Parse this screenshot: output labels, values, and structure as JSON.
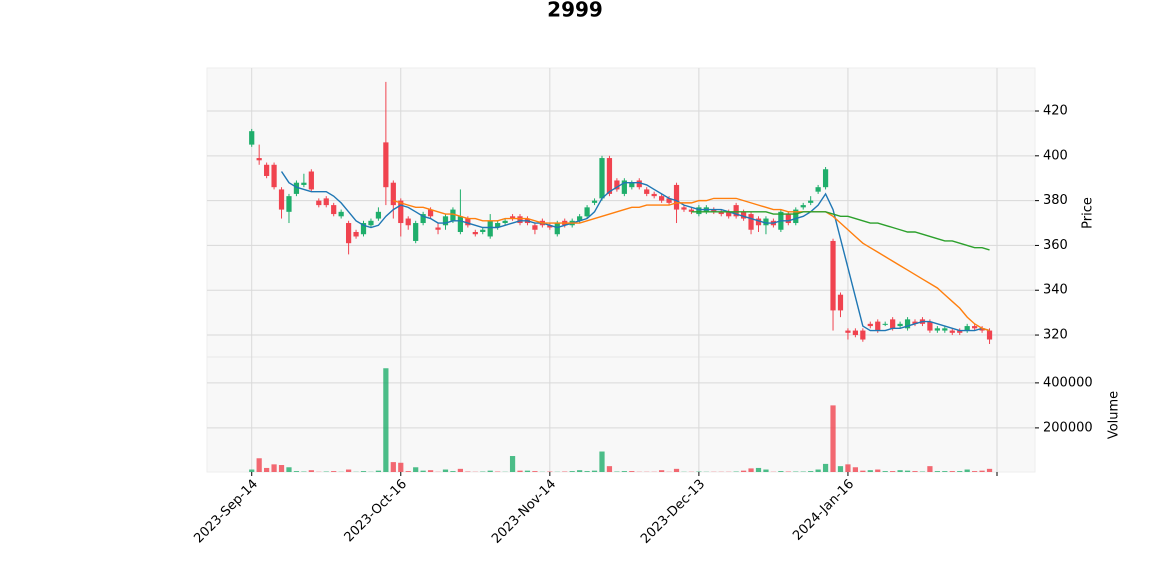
{
  "chart_data": {
    "type": "candlestick",
    "title": "2999",
    "categories": [
      "2023-Sep-14",
      null,
      null,
      null,
      null,
      null,
      null,
      null,
      null,
      null,
      null,
      null,
      null,
      null,
      null,
      null,
      null,
      null,
      null,
      null,
      "2023-Oct-16",
      null,
      null,
      null,
      null,
      null,
      null,
      null,
      null,
      null,
      null,
      null,
      null,
      null,
      null,
      null,
      null,
      null,
      null,
      null,
      "2023-Nov-14",
      null,
      null,
      null,
      null,
      null,
      null,
      null,
      null,
      null,
      null,
      null,
      null,
      null,
      null,
      null,
      null,
      null,
      null,
      null,
      "2023-Dec-13",
      null,
      null,
      null,
      null,
      null,
      null,
      null,
      null,
      null,
      null,
      null,
      null,
      null,
      null,
      null,
      null,
      null,
      null,
      null,
      "2024-Jan-16",
      null,
      null,
      null,
      null,
      null,
      null,
      null,
      null,
      null,
      null,
      null,
      null,
      null,
      null,
      null,
      null,
      null,
      null,
      null
    ],
    "xlim": [
      -6,
      105.1
    ],
    "xticks": [
      0,
      20,
      40,
      60,
      80,
      100
    ],
    "open": [
      405,
      399,
      396,
      396,
      385,
      375,
      383,
      387,
      393,
      380,
      381,
      378,
      373,
      370,
      366,
      365,
      369,
      372,
      406,
      388,
      380,
      372,
      362,
      370,
      376,
      368,
      369,
      371,
      366,
      372,
      366,
      366,
      364,
      368,
      370,
      373,
      373,
      372,
      369,
      371,
      369,
      365,
      371,
      369,
      371,
      373,
      379,
      381,
      399,
      389,
      383,
      386,
      389,
      385,
      383,
      382,
      381,
      387,
      377,
      376,
      374,
      375,
      376,
      375,
      375,
      378,
      375,
      374,
      372,
      369,
      371,
      367,
      374,
      370,
      377,
      379,
      384,
      386,
      362,
      338,
      322,
      322,
      322,
      325,
      326,
      325,
      327,
      324,
      323,
      326,
      327,
      326,
      322,
      322,
      322,
      322,
      322,
      324,
      323,
      322
    ],
    "high": [
      412,
      405,
      397,
      397,
      386,
      383,
      389,
      392,
      394,
      381,
      382,
      379,
      376,
      371,
      367,
      371,
      372,
      377,
      433,
      389,
      381,
      373,
      371,
      375,
      377,
      370,
      374,
      377,
      385,
      373,
      367,
      368,
      374,
      371,
      372,
      374,
      374,
      373,
      370,
      372,
      370,
      371,
      372,
      372,
      374,
      378,
      381,
      400,
      400,
      390,
      390,
      389,
      390,
      386,
      384,
      383,
      382,
      388,
      378,
      377,
      378,
      378,
      377,
      376,
      376,
      379,
      376,
      375,
      373,
      373,
      372,
      376,
      375,
      377,
      379,
      382,
      387,
      395,
      363,
      339,
      323,
      323,
      323,
      326,
      327,
      326,
      328,
      326,
      328,
      327,
      328,
      327,
      324,
      324,
      323,
      323,
      325,
      325,
      324,
      323
    ],
    "low": [
      404,
      396,
      390,
      385,
      372,
      370,
      382,
      386,
      384,
      377,
      377,
      373,
      372,
      356,
      363,
      364,
      368,
      371,
      378,
      372,
      364,
      367,
      361,
      369,
      372,
      365,
      367,
      370,
      365,
      368,
      364,
      365,
      363,
      367,
      369,
      371,
      369,
      369,
      365,
      368,
      367,
      364,
      368,
      368,
      370,
      372,
      378,
      380,
      382,
      384,
      382,
      385,
      385,
      382,
      381,
      379,
      378,
      370,
      375,
      374,
      373,
      374,
      374,
      373,
      372,
      372,
      371,
      365,
      366,
      365,
      368,
      366,
      369,
      369,
      376,
      378,
      383,
      385,
      322,
      328,
      318,
      319,
      317,
      323,
      321,
      324,
      322,
      323,
      322,
      324,
      324,
      321,
      321,
      321,
      320,
      320,
      321,
      322,
      321,
      316
    ],
    "close": [
      411,
      398,
      391,
      386,
      376,
      382,
      388,
      388,
      385,
      378,
      378,
      374,
      375,
      361,
      364,
      370,
      371,
      375,
      386,
      378,
      370,
      369,
      370,
      374,
      373,
      367,
      373,
      376,
      373,
      369,
      365,
      367,
      371,
      370,
      371,
      372,
      370,
      370,
      367,
      369,
      368,
      370,
      369,
      371,
      373,
      377,
      380,
      399,
      383,
      385,
      389,
      388,
      386,
      383,
      382,
      380,
      379,
      376,
      376,
      375,
      377,
      377,
      375,
      374,
      373,
      373,
      372,
      367,
      369,
      372,
      369,
      375,
      370,
      376,
      378,
      380,
      386,
      394,
      331,
      331,
      321,
      320,
      318,
      324,
      322,
      325,
      323,
      325,
      327,
      325,
      325,
      322,
      323,
      323,
      321,
      321,
      324,
      323,
      322,
      318
    ],
    "volume": [
      15000,
      65000,
      22000,
      38000,
      35000,
      25000,
      8000,
      6000,
      12000,
      5000,
      6000,
      8000,
      5000,
      15000,
      5000,
      8000,
      5000,
      10000,
      465000,
      48000,
      45000,
      8000,
      25000,
      10000,
      12000,
      5000,
      15000,
      8000,
      18000,
      6000,
      5000,
      6000,
      10000,
      6000,
      5000,
      75000,
      10000,
      10000,
      8000,
      5000,
      6000,
      5000,
      6000,
      8000,
      12000,
      8000,
      10000,
      95000,
      30000,
      6000,
      8000,
      8000,
      5000,
      5000,
      5000,
      12000,
      5000,
      18000,
      5000,
      5000,
      6000,
      5000,
      5000,
      5000,
      5000,
      6000,
      10000,
      20000,
      22000,
      15000,
      5000,
      8000,
      6000,
      6000,
      6000,
      8000,
      15000,
      40000,
      300000,
      30000,
      38000,
      25000,
      10000,
      12000,
      15000,
      8000,
      8000,
      12000,
      10000,
      8000,
      6000,
      30000,
      8000,
      8000,
      8000,
      8000,
      15000,
      8000,
      10000,
      18000
    ],
    "moving_averages": [
      {
        "color": "#1f77b4",
        "values": [
          null,
          null,
          null,
          null,
          393,
          388,
          386,
          385,
          384,
          384,
          384,
          382,
          379,
          375,
          371,
          369,
          368,
          369,
          373,
          376,
          378,
          377,
          375,
          373,
          372,
          370,
          370,
          371,
          371,
          370,
          369,
          368,
          368,
          368,
          369,
          370,
          371,
          371,
          370,
          370,
          369,
          368,
          369,
          370,
          371,
          372,
          375,
          381,
          384,
          386,
          388,
          388,
          388,
          387,
          385,
          383,
          381,
          380,
          378,
          377,
          376,
          376,
          376,
          376,
          375,
          374,
          373,
          372,
          371,
          370,
          370,
          371,
          371,
          372,
          373,
          375,
          378,
          383,
          376,
          363,
          350,
          337,
          324,
          322,
          322,
          322,
          323,
          323,
          324,
          325,
          326,
          326,
          325,
          324,
          323,
          322,
          322,
          322,
          323,
          322
        ]
      },
      {
        "color": "#ff7f0e",
        "values": [
          null,
          null,
          null,
          null,
          null,
          null,
          null,
          null,
          null,
          null,
          null,
          null,
          null,
          null,
          null,
          null,
          null,
          null,
          null,
          380,
          379,
          378,
          377,
          377,
          376,
          375,
          374,
          374,
          373,
          372,
          372,
          371,
          371,
          371,
          372,
          372,
          372,
          372,
          371,
          370,
          370,
          370,
          370,
          370,
          370,
          371,
          372,
          373,
          374,
          375,
          376,
          377,
          377,
          378,
          378,
          378,
          378,
          379,
          379,
          379,
          380,
          380,
          381,
          381,
          381,
          381,
          380,
          379,
          378,
          377,
          376,
          376,
          375,
          375,
          375,
          375,
          375,
          375,
          373,
          370,
          367,
          364,
          361,
          359,
          357,
          355,
          353,
          351,
          349,
          347,
          345,
          343,
          341,
          338,
          335,
          332,
          328,
          325,
          323,
          322
        ]
      },
      {
        "color": "#2ca02c",
        "values": [
          null,
          null,
          null,
          null,
          null,
          null,
          null,
          null,
          null,
          null,
          null,
          null,
          null,
          null,
          null,
          null,
          null,
          null,
          null,
          null,
          null,
          null,
          null,
          null,
          null,
          null,
          null,
          null,
          null,
          null,
          null,
          null,
          null,
          null,
          null,
          null,
          null,
          null,
          null,
          null,
          null,
          null,
          null,
          null,
          null,
          null,
          null,
          null,
          null,
          null,
          null,
          null,
          null,
          null,
          null,
          null,
          null,
          null,
          null,
          375,
          375,
          375,
          375,
          375,
          375,
          375,
          375,
          375,
          375,
          375,
          374,
          374,
          374,
          374,
          375,
          375,
          375,
          375,
          374,
          373,
          373,
          372,
          371,
          370,
          370,
          369,
          368,
          367,
          366,
          366,
          365,
          364,
          363,
          362,
          362,
          361,
          360,
          359,
          359,
          358
        ]
      }
    ],
    "ylim": [
      310.2,
      439.2
    ],
    "yticks": [
      320,
      340,
      360,
      380,
      400,
      420
    ],
    "ylabel": "Price",
    "volume_ylim": [
      4000,
      515000
    ],
    "volume_yticks": [
      200000,
      400000
    ],
    "volume_label": "Volume",
    "up_color": "#1fae6b",
    "down_color": "#f0434f",
    "grid": true
  }
}
